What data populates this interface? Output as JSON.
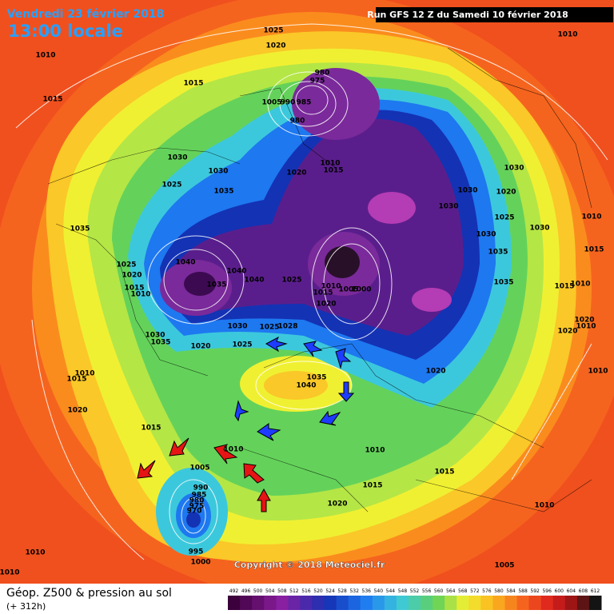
{
  "header": {
    "date": "Vendredi 23 février 2018",
    "time": "13:00 locale",
    "run": "Run GFS 12 Z du Samedi 10 février 2018"
  },
  "footer": {
    "title": "Géop. Z500 & pression au sol",
    "lead": "(+ 312h)",
    "copyright": "Copyright © 2018 Meteociel.fr"
  },
  "legend": {
    "values": [
      492,
      496,
      500,
      504,
      508,
      512,
      516,
      520,
      524,
      528,
      532,
      536,
      540,
      544,
      548,
      552,
      556,
      560,
      564,
      568,
      572,
      576,
      580,
      584,
      588,
      592,
      596,
      600,
      604,
      608,
      612
    ]
  },
  "pressure_labels": [
    "1025",
    "1020",
    "1010",
    "1010",
    "1015",
    "1015",
    "980",
    "975",
    "1005",
    "990",
    "985",
    "980",
    "1030",
    "1030",
    "1025",
    "1035",
    "1020",
    "1010",
    "1015",
    "1030",
    "1030",
    "1020",
    "1030",
    "1025",
    "1030",
    "1010",
    "1030",
    "1035",
    "1015",
    "1035",
    "1025",
    "1040",
    "1020",
    "1015",
    "1010",
    "1035",
    "1040",
    "1040",
    "1025",
    "1010",
    "1005",
    "1000",
    "1015",
    "1020",
    "1035",
    "1015",
    "1010",
    "1020",
    "1010",
    "1020",
    "1030",
    "1035",
    "1030",
    "1025",
    "1028",
    "1020",
    "1025",
    "1020",
    "1010",
    "1010",
    "1015",
    "1035",
    "1040",
    "1020",
    "1015",
    "1010",
    "1005",
    "1010",
    "1015",
    "1015",
    "1020",
    "1010",
    "990",
    "985",
    "980",
    "975",
    "970",
    "995",
    "1000",
    "1010",
    "1010",
    "1005"
  ]
}
